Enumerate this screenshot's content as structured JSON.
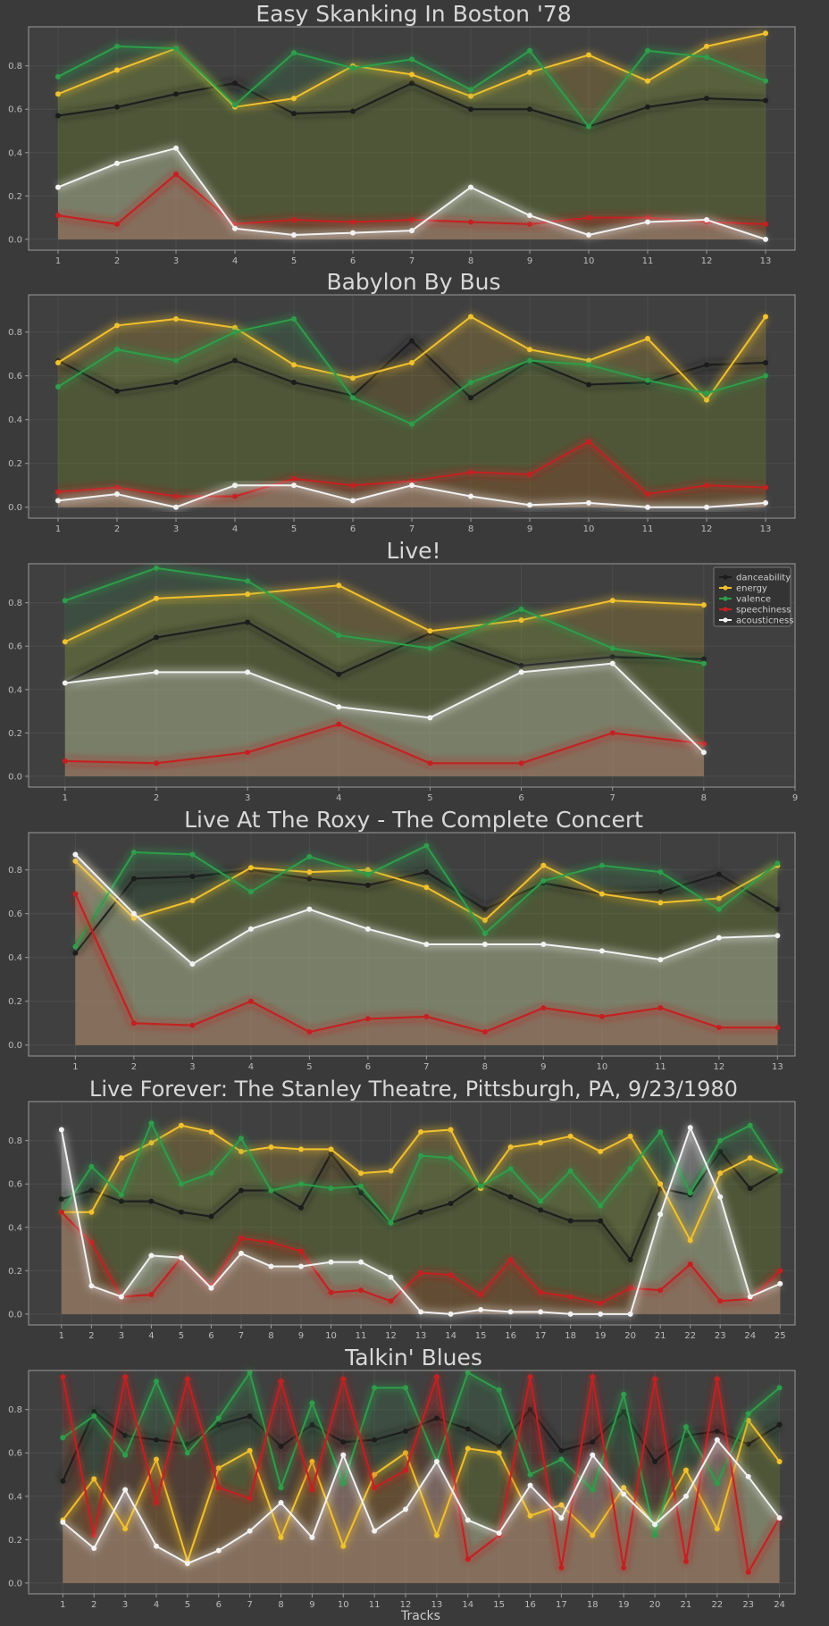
{
  "figure": {
    "xlabel": "Tracks",
    "background": "#3a3a3a",
    "axes_background": "#404040"
  },
  "legend": {
    "placement": "top-right",
    "entries": [
      "danceability",
      "energy",
      "valence",
      "speechiness",
      "acousticness"
    ]
  },
  "colors": {
    "danceability": "#1c1c1c",
    "energy": "#f2c12e",
    "valence": "#2e9e4a",
    "speechiness": "#c42020",
    "acousticness": "#f2f2f2"
  },
  "chart_data": [
    {
      "type": "line",
      "title": "Easy Skanking In Boston '78",
      "x": [
        1,
        2,
        3,
        4,
        5,
        6,
        7,
        8,
        9,
        10,
        11,
        12,
        13
      ],
      "xlim": [
        0.5,
        13.5
      ],
      "ylim": [
        -0.05,
        0.98
      ],
      "yticks": [
        0.0,
        0.2,
        0.4,
        0.6,
        0.8
      ],
      "grid": true,
      "series": [
        {
          "name": "danceability",
          "values": [
            0.57,
            0.61,
            0.67,
            0.72,
            0.58,
            0.59,
            0.72,
            0.6,
            0.6,
            0.52,
            0.61,
            0.65,
            0.64
          ]
        },
        {
          "name": "energy",
          "values": [
            0.67,
            0.78,
            0.88,
            0.61,
            0.65,
            0.8,
            0.76,
            0.66,
            0.77,
            0.85,
            0.73,
            0.89,
            0.95
          ]
        },
        {
          "name": "valence",
          "values": [
            0.75,
            0.89,
            0.88,
            0.62,
            0.86,
            0.79,
            0.83,
            0.69,
            0.87,
            0.52,
            0.87,
            0.84,
            0.73
          ]
        },
        {
          "name": "speechiness",
          "values": [
            0.11,
            0.07,
            0.3,
            0.07,
            0.09,
            0.08,
            0.09,
            0.08,
            0.07,
            0.1,
            0.1,
            0.08,
            0.07
          ]
        },
        {
          "name": "acousticness",
          "values": [
            0.24,
            0.35,
            0.42,
            0.05,
            0.02,
            0.03,
            0.04,
            0.24,
            0.11,
            0.02,
            0.08,
            0.09,
            0.0
          ]
        }
      ]
    },
    {
      "type": "line",
      "title": "Babylon By Bus",
      "x": [
        1,
        2,
        3,
        4,
        5,
        6,
        7,
        8,
        9,
        10,
        11,
        12,
        13
      ],
      "xlim": [
        0.5,
        13.5
      ],
      "ylim": [
        -0.05,
        0.97
      ],
      "yticks": [
        0.0,
        0.2,
        0.4,
        0.6,
        0.8
      ],
      "grid": true,
      "series": [
        {
          "name": "danceability",
          "values": [
            0.67,
            0.53,
            0.57,
            0.67,
            0.57,
            0.51,
            0.76,
            0.5,
            0.67,
            0.56,
            0.57,
            0.65,
            0.66
          ]
        },
        {
          "name": "energy",
          "values": [
            0.66,
            0.83,
            0.86,
            0.82,
            0.65,
            0.59,
            0.66,
            0.87,
            0.72,
            0.67,
            0.77,
            0.49,
            0.87
          ]
        },
        {
          "name": "valence",
          "values": [
            0.55,
            0.72,
            0.67,
            0.8,
            0.86,
            0.5,
            0.38,
            0.57,
            0.67,
            0.65,
            0.58,
            0.52,
            0.6
          ]
        },
        {
          "name": "speechiness",
          "values": [
            0.07,
            0.09,
            0.05,
            0.05,
            0.13,
            0.1,
            0.12,
            0.16,
            0.15,
            0.3,
            0.06,
            0.1,
            0.09
          ]
        },
        {
          "name": "acousticness",
          "values": [
            0.03,
            0.06,
            0.0,
            0.1,
            0.1,
            0.03,
            0.1,
            0.05,
            0.01,
            0.02,
            0.0,
            0.0,
            0.02
          ]
        }
      ]
    },
    {
      "type": "line",
      "title": "Live!",
      "x": [
        1,
        2,
        3,
        4,
        5,
        6,
        7,
        8
      ],
      "xlim": [
        0.6,
        9.0
      ],
      "xticks": [
        1,
        2,
        3,
        4,
        5,
        6,
        7,
        8,
        9
      ],
      "ylim": [
        -0.05,
        0.98
      ],
      "yticks": [
        0.0,
        0.2,
        0.4,
        0.6,
        0.8
      ],
      "grid": true,
      "show_legend": true,
      "series": [
        {
          "name": "danceability",
          "values": [
            0.43,
            0.64,
            0.71,
            0.47,
            0.66,
            0.51,
            0.55,
            0.54
          ]
        },
        {
          "name": "energy",
          "values": [
            0.62,
            0.82,
            0.84,
            0.88,
            0.67,
            0.72,
            0.81,
            0.79
          ]
        },
        {
          "name": "valence",
          "values": [
            0.81,
            0.96,
            0.9,
            0.65,
            0.59,
            0.77,
            0.59,
            0.52
          ]
        },
        {
          "name": "speechiness",
          "values": [
            0.07,
            0.06,
            0.11,
            0.24,
            0.06,
            0.06,
            0.2,
            0.15
          ]
        },
        {
          "name": "acousticness",
          "values": [
            0.43,
            0.48,
            0.48,
            0.32,
            0.27,
            0.48,
            0.52,
            0.11
          ]
        }
      ]
    },
    {
      "type": "line",
      "title": "Live At The Roxy - The Complete Concert",
      "x": [
        1,
        2,
        3,
        4,
        5,
        6,
        7,
        8,
        9,
        10,
        11,
        12,
        13
      ],
      "xlim": [
        0.2,
        13.3
      ],
      "ylim": [
        -0.05,
        0.97
      ],
      "yticks": [
        0.0,
        0.2,
        0.4,
        0.6,
        0.8
      ],
      "grid": true,
      "series": [
        {
          "name": "danceability",
          "values": [
            0.42,
            0.76,
            0.77,
            0.8,
            0.76,
            0.73,
            0.79,
            0.62,
            0.74,
            0.69,
            0.7,
            0.78,
            0.62
          ]
        },
        {
          "name": "energy",
          "values": [
            0.84,
            0.58,
            0.66,
            0.81,
            0.79,
            0.8,
            0.72,
            0.57,
            0.82,
            0.69,
            0.65,
            0.67,
            0.82
          ]
        },
        {
          "name": "valence",
          "values": [
            0.45,
            0.88,
            0.87,
            0.7,
            0.86,
            0.78,
            0.91,
            0.51,
            0.75,
            0.82,
            0.79,
            0.62,
            0.83
          ]
        },
        {
          "name": "speechiness",
          "values": [
            0.69,
            0.1,
            0.09,
            0.2,
            0.06,
            0.12,
            0.13,
            0.06,
            0.17,
            0.13,
            0.17,
            0.08,
            0.08
          ]
        },
        {
          "name": "acousticness",
          "values": [
            0.87,
            0.6,
            0.37,
            0.53,
            0.62,
            0.53,
            0.46,
            0.46,
            0.46,
            0.43,
            0.39,
            0.49,
            0.5
          ]
        }
      ]
    },
    {
      "type": "line",
      "title": "Live Forever: The Stanley Theatre, Pittsburgh, PA, 9/23/1980",
      "x": [
        1,
        2,
        3,
        4,
        5,
        6,
        7,
        8,
        9,
        10,
        11,
        12,
        13,
        14,
        15,
        16,
        17,
        18,
        19,
        20,
        21,
        22,
        23,
        24,
        25
      ],
      "xlim": [
        -0.1,
        25.5
      ],
      "ylim": [
        -0.05,
        0.98
      ],
      "yticks": [
        0.0,
        0.2,
        0.4,
        0.6,
        0.8
      ],
      "grid": true,
      "series": [
        {
          "name": "danceability",
          "values": [
            0.53,
            0.57,
            0.52,
            0.52,
            0.47,
            0.45,
            0.57,
            0.57,
            0.49,
            0.74,
            0.56,
            0.42,
            0.47,
            0.51,
            0.6,
            0.54,
            0.48,
            0.43,
            0.43,
            0.25,
            0.58,
            0.55,
            0.75,
            0.58,
            0.66
          ]
        },
        {
          "name": "energy",
          "values": [
            0.47,
            0.47,
            0.72,
            0.79,
            0.87,
            0.84,
            0.75,
            0.77,
            0.76,
            0.76,
            0.65,
            0.66,
            0.84,
            0.85,
            0.58,
            0.77,
            0.79,
            0.82,
            0.75,
            0.82,
            0.6,
            0.34,
            0.65,
            0.72,
            0.66
          ]
        },
        {
          "name": "valence",
          "values": [
            0.47,
            0.68,
            0.55,
            0.88,
            0.6,
            0.65,
            0.81,
            0.57,
            0.6,
            0.58,
            0.59,
            0.42,
            0.73,
            0.72,
            0.59,
            0.67,
            0.52,
            0.66,
            0.5,
            0.67,
            0.84,
            0.56,
            0.8,
            0.87,
            0.66
          ]
        },
        {
          "name": "speechiness",
          "values": [
            0.47,
            0.33,
            0.08,
            0.09,
            0.26,
            0.13,
            0.35,
            0.33,
            0.29,
            0.1,
            0.11,
            0.06,
            0.19,
            0.18,
            0.09,
            0.25,
            0.1,
            0.08,
            0.05,
            0.12,
            0.11,
            0.23,
            0.06,
            0.07,
            0.2
          ]
        },
        {
          "name": "acousticness",
          "values": [
            0.85,
            0.13,
            0.08,
            0.27,
            0.26,
            0.12,
            0.28,
            0.22,
            0.22,
            0.24,
            0.24,
            0.17,
            0.01,
            0.0,
            0.02,
            0.01,
            0.01,
            0.0,
            0.0,
            0.0,
            0.46,
            0.86,
            0.54,
            0.08,
            0.14
          ]
        }
      ]
    },
    {
      "type": "line",
      "title": "Talkin' Blues",
      "xlabel": "Tracks",
      "x": [
        1,
        2,
        3,
        4,
        5,
        6,
        7,
        8,
        9,
        10,
        11,
        12,
        13,
        14,
        15,
        16,
        17,
        18,
        19,
        20,
        21,
        22,
        23,
        24
      ],
      "xlim": [
        -0.1,
        24.5
      ],
      "ylim": [
        -0.05,
        0.98
      ],
      "yticks": [
        0.0,
        0.2,
        0.4,
        0.6,
        0.8
      ],
      "grid": true,
      "series": [
        {
          "name": "danceability",
          "values": [
            0.47,
            0.79,
            0.68,
            0.66,
            0.64,
            0.73,
            0.77,
            0.63,
            0.73,
            0.65,
            0.66,
            0.7,
            0.76,
            0.71,
            0.63,
            0.8,
            0.61,
            0.65,
            0.79,
            0.56,
            0.68,
            0.7,
            0.64,
            0.73
          ]
        },
        {
          "name": "energy",
          "values": [
            0.29,
            0.48,
            0.25,
            0.57,
            0.1,
            0.53,
            0.61,
            0.21,
            0.56,
            0.17,
            0.5,
            0.6,
            0.22,
            0.62,
            0.6,
            0.31,
            0.36,
            0.22,
            0.44,
            0.27,
            0.52,
            0.25,
            0.75,
            0.56
          ]
        },
        {
          "name": "valence",
          "values": [
            0.67,
            0.77,
            0.59,
            0.93,
            0.6,
            0.76,
            0.97,
            0.44,
            0.83,
            0.46,
            0.9,
            0.9,
            0.56,
            0.97,
            0.89,
            0.5,
            0.57,
            0.43,
            0.87,
            0.22,
            0.72,
            0.46,
            0.78,
            0.9
          ]
        },
        {
          "name": "speechiness",
          "values": [
            0.95,
            0.22,
            0.95,
            0.37,
            0.94,
            0.44,
            0.39,
            0.93,
            0.43,
            0.94,
            0.44,
            0.52,
            0.95,
            0.11,
            0.22,
            0.95,
            0.07,
            0.95,
            0.07,
            0.94,
            0.1,
            0.94,
            0.05,
            0.3
          ]
        },
        {
          "name": "acousticness",
          "values": [
            0.28,
            0.16,
            0.43,
            0.17,
            0.09,
            0.15,
            0.24,
            0.37,
            0.21,
            0.59,
            0.24,
            0.34,
            0.56,
            0.29,
            0.23,
            0.45,
            0.3,
            0.59,
            0.41,
            0.27,
            0.4,
            0.66,
            0.49,
            0.3
          ]
        }
      ]
    }
  ]
}
